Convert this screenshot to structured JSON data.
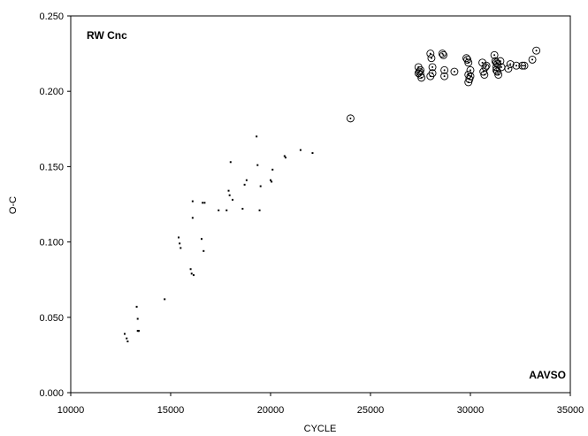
{
  "chart_data": {
    "type": "scatter",
    "title": "",
    "xlabel": "CYCLE",
    "ylabel": "O-C",
    "xlim": [
      10000,
      35000
    ],
    "ylim": [
      0.0,
      0.25
    ],
    "x_ticks": [
      "10000",
      "15000",
      "20000",
      "25000",
      "30000",
      "35000"
    ],
    "y_ticks": [
      "0.000",
      "0.050",
      "0.100",
      "0.150",
      "0.200",
      "0.250"
    ],
    "grid": false,
    "legend": "none",
    "annotations": [
      {
        "text": "RW Cnc",
        "position": "top-left"
      },
      {
        "text": "AAVSO",
        "position": "bottom-right"
      }
    ],
    "series": [
      {
        "marker": "dot",
        "x": [
          12700,
          12800,
          12850,
          13300,
          13350,
          13350,
          13400,
          13400,
          14700,
          15400,
          15450,
          15500,
          16000,
          16050,
          16100,
          16100,
          16150,
          16550,
          16650,
          16600,
          16700,
          17400,
          17800,
          17900,
          17950,
          18000,
          18100,
          18600,
          18700,
          18800,
          19300,
          19350,
          19450,
          19500,
          20000,
          20050,
          20100,
          20700,
          20750,
          21500,
          22100
        ],
        "y": [
          0.039,
          0.036,
          0.034,
          0.057,
          0.049,
          0.041,
          0.041,
          0.041,
          0.062,
          0.103,
          0.099,
          0.096,
          0.082,
          0.079,
          0.116,
          0.127,
          0.078,
          0.102,
          0.094,
          0.126,
          0.126,
          0.121,
          0.121,
          0.134,
          0.131,
          0.153,
          0.128,
          0.122,
          0.138,
          0.141,
          0.17,
          0.151,
          0.121,
          0.137,
          0.141,
          0.14,
          0.148,
          0.157,
          0.156,
          0.161,
          0.159
        ]
      },
      {
        "marker": "circle",
        "x": [
          24000,
          27400,
          27400,
          27450,
          27500,
          27550,
          27500,
          28000,
          28050,
          28100,
          28000,
          28100,
          28600,
          28650,
          28700,
          28700,
          29200,
          29800,
          29850,
          29900,
          29900,
          29950,
          30000,
          29900,
          30000,
          30600,
          30650,
          30700,
          30750,
          30800,
          31200,
          31250,
          31300,
          31300,
          31350,
          31400,
          31300,
          31350,
          31500,
          31550,
          31900,
          32000,
          32300,
          32600,
          32700,
          33100,
          33300
        ],
        "y": [
          0.182,
          0.216,
          0.212,
          0.213,
          0.211,
          0.209,
          0.214,
          0.225,
          0.222,
          0.216,
          0.21,
          0.212,
          0.225,
          0.224,
          0.214,
          0.21,
          0.213,
          0.222,
          0.221,
          0.219,
          0.206,
          0.208,
          0.214,
          0.211,
          0.21,
          0.219,
          0.213,
          0.211,
          0.216,
          0.217,
          0.224,
          0.22,
          0.219,
          0.216,
          0.213,
          0.211,
          0.214,
          0.218,
          0.22,
          0.216,
          0.215,
          0.218,
          0.217,
          0.217,
          0.217,
          0.221,
          0.227
        ]
      }
    ]
  }
}
